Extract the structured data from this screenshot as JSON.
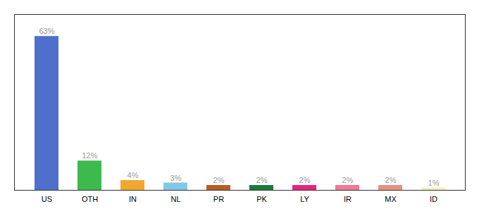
{
  "chart_data": {
    "type": "bar",
    "categories": [
      "US",
      "OTH",
      "IN",
      "NL",
      "PR",
      "PK",
      "LY",
      "IR",
      "MX",
      "ID"
    ],
    "values": [
      63,
      12,
      4,
      3,
      2,
      2,
      2,
      2,
      2,
      1
    ],
    "value_labels": [
      "63%",
      "12%",
      "4%",
      "3%",
      "2%",
      "2%",
      "2%",
      "2%",
      "2%",
      "1%"
    ],
    "colors": [
      "#4f6fcc",
      "#3dba4e",
      "#f0a830",
      "#82c8e8",
      "#b85c25",
      "#1e7a3a",
      "#e8257a",
      "#f07898",
      "#e89080",
      "#f0f0c0"
    ],
    "ylim": [
      0,
      72
    ],
    "data_labels": true,
    "tick_labels": "x",
    "grid": false
  }
}
